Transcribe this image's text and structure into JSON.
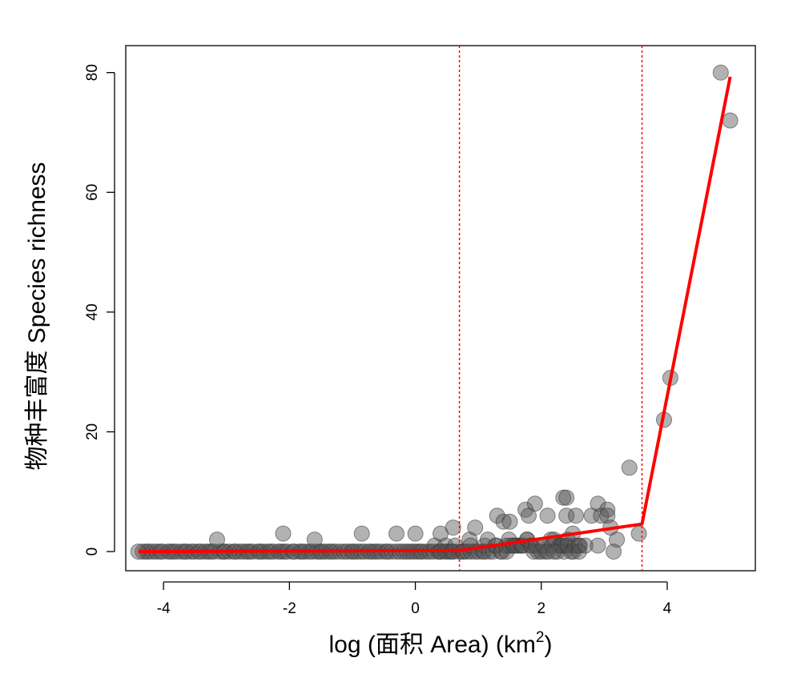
{
  "chart_data": {
    "type": "scatter",
    "title": "",
    "xlabel": "log (面积 Area) (km",
    "xlabel_sup": "2",
    "xlabel_close": ")",
    "ylabel": "物种丰富度 Species richness",
    "xlim": [
      -4.6,
      5.4
    ],
    "ylim": [
      -3.2,
      84.5
    ],
    "xticks": [
      -4,
      -2,
      0,
      2,
      4
    ],
    "xtick_labels": [
      "-4",
      "-2",
      "0",
      "2",
      "4"
    ],
    "yticks": [
      0,
      20,
      40,
      60,
      80
    ],
    "ytick_labels": [
      "0",
      "20",
      "40",
      "60",
      "80"
    ],
    "grid": false,
    "colors": {
      "points": "#555555",
      "fit_line": "#ff0000",
      "breakpoint_lines": "#ff0000"
    },
    "breakpoints": [
      0.7,
      3.6
    ],
    "fit_line": {
      "x": [
        -4.4,
        0.7,
        3.6,
        5.0
      ],
      "y": [
        0,
        0.2,
        4.6,
        79.3
      ]
    },
    "highlighted_points": [
      {
        "x": -4.4,
        "y": 0
      },
      {
        "x": -3.15,
        "y": 2
      },
      {
        "x": -2.1,
        "y": 3
      },
      {
        "x": -1.6,
        "y": 2
      },
      {
        "x": -0.85,
        "y": 3
      },
      {
        "x": -0.3,
        "y": 3
      },
      {
        "x": 0.0,
        "y": 3
      },
      {
        "x": 0.4,
        "y": 3
      },
      {
        "x": 0.6,
        "y": 4
      },
      {
        "x": 0.95,
        "y": 4
      },
      {
        "x": 1.3,
        "y": 6
      },
      {
        "x": 1.4,
        "y": 5
      },
      {
        "x": 1.5,
        "y": 5
      },
      {
        "x": 1.75,
        "y": 7
      },
      {
        "x": 1.8,
        "y": 6
      },
      {
        "x": 1.9,
        "y": 8
      },
      {
        "x": 2.1,
        "y": 6
      },
      {
        "x": 2.35,
        "y": 9
      },
      {
        "x": 2.4,
        "y": 9
      },
      {
        "x": 2.4,
        "y": 6
      },
      {
        "x": 2.55,
        "y": 6
      },
      {
        "x": 2.5,
        "y": 3
      },
      {
        "x": 2.6,
        "y": 0
      },
      {
        "x": 2.7,
        "y": 1
      },
      {
        "x": 2.8,
        "y": 6
      },
      {
        "x": 2.9,
        "y": 8
      },
      {
        "x": 2.95,
        "y": 6
      },
      {
        "x": 3.05,
        "y": 7
      },
      {
        "x": 3.05,
        "y": 6
      },
      {
        "x": 3.1,
        "y": 4
      },
      {
        "x": 3.15,
        "y": 0
      },
      {
        "x": 3.2,
        "y": 2
      },
      {
        "x": 2.9,
        "y": 1
      },
      {
        "x": 2.2,
        "y": 0
      },
      {
        "x": 3.4,
        "y": 14
      },
      {
        "x": 3.55,
        "y": 3
      },
      {
        "x": 3.95,
        "y": 22
      },
      {
        "x": 4.05,
        "y": 29
      },
      {
        "x": 4.85,
        "y": 80
      },
      {
        "x": 5.0,
        "y": 72
      }
    ]
  }
}
